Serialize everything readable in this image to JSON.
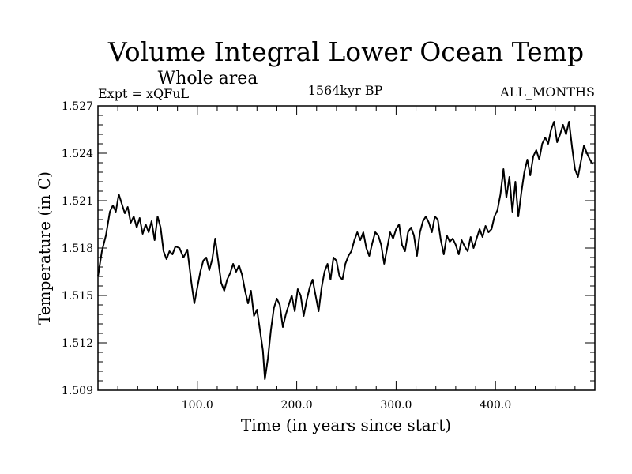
{
  "chart_data": {
    "type": "line",
    "title": "Volume Integral Lower Ocean Temp",
    "subtitle": "Whole area",
    "left_label": "Expt = xQFuL",
    "center_label": "1564kyr BP",
    "right_label": "ALL_MONTHS",
    "xlabel": "Time (in years since start)",
    "ylabel": "Temperature (in C)",
    "xlim": [
      0,
      500
    ],
    "ylim": [
      1.509,
      1.527
    ],
    "x_ticks": [
      100,
      200,
      300,
      400
    ],
    "x_tick_labels": [
      "100.0",
      "200.0",
      "300.0",
      "400.0"
    ],
    "y_ticks": [
      1.509,
      1.512,
      1.515,
      1.518,
      1.521,
      1.524,
      1.527
    ],
    "y_tick_labels": [
      "1.509",
      "1.512",
      "1.515",
      "1.518",
      "1.521",
      "1.524",
      "1.527"
    ],
    "line_color": "#000000",
    "series": [
      {
        "name": "Volume Integral Lower Ocean Temp",
        "x": [
          0,
          4,
          8,
          12,
          15,
          18,
          21,
          24,
          27,
          30,
          33,
          36,
          39,
          42,
          45,
          48,
          51,
          54,
          57,
          60,
          63,
          66,
          69,
          72,
          75,
          78,
          82,
          86,
          90,
          94,
          97,
          100,
          103,
          106,
          109,
          112,
          115,
          118,
          121,
          124,
          127,
          130,
          133,
          136,
          139,
          142,
          145,
          148,
          151,
          154,
          157,
          160,
          163,
          166,
          168,
          171,
          174,
          177,
          180,
          183,
          186,
          189,
          192,
          195,
          198,
          201,
          204,
          207,
          210,
          213,
          216,
          219,
          222,
          225,
          228,
          231,
          234,
          237,
          240,
          243,
          246,
          249,
          252,
          255,
          258,
          261,
          264,
          267,
          270,
          273,
          276,
          279,
          282,
          285,
          288,
          291,
          294,
          297,
          300,
          303,
          306,
          309,
          312,
          315,
          318,
          321,
          324,
          327,
          330,
          333,
          336,
          339,
          342,
          345,
          348,
          351,
          354,
          357,
          360,
          363,
          366,
          369,
          372,
          375,
          378,
          381,
          384,
          387,
          390,
          393,
          396,
          399,
          402,
          405,
          408,
          411,
          414,
          417,
          420,
          423,
          426,
          429,
          432,
          435,
          438,
          441,
          444,
          447,
          450,
          453,
          456,
          459,
          462,
          465,
          468,
          471,
          474,
          477,
          480,
          483,
          486,
          489,
          492,
          495,
          498
        ],
        "y": [
          1.5162,
          1.5178,
          1.5188,
          1.5203,
          1.5207,
          1.5203,
          1.5214,
          1.5208,
          1.5202,
          1.5206,
          1.5196,
          1.52,
          1.5193,
          1.5199,
          1.5189,
          1.5195,
          1.519,
          1.5197,
          1.5185,
          1.52,
          1.5193,
          1.5178,
          1.5173,
          1.5178,
          1.5176,
          1.5181,
          1.518,
          1.5174,
          1.5179,
          1.5158,
          1.5145,
          1.5155,
          1.5165,
          1.5172,
          1.5174,
          1.5166,
          1.5173,
          1.5186,
          1.5172,
          1.5158,
          1.5153,
          1.516,
          1.5164,
          1.517,
          1.5165,
          1.5169,
          1.5163,
          1.5153,
          1.5145,
          1.5153,
          1.5137,
          1.5141,
          1.5128,
          1.5115,
          1.5097,
          1.511,
          1.5128,
          1.5142,
          1.5148,
          1.5144,
          1.513,
          1.5138,
          1.5144,
          1.515,
          1.514,
          1.5154,
          1.515,
          1.5137,
          1.5147,
          1.5155,
          1.516,
          1.515,
          1.514,
          1.5155,
          1.5165,
          1.517,
          1.516,
          1.5174,
          1.5172,
          1.5162,
          1.516,
          1.517,
          1.5175,
          1.5178,
          1.5185,
          1.519,
          1.5185,
          1.519,
          1.518,
          1.5175,
          1.5183,
          1.519,
          1.5188,
          1.5182,
          1.517,
          1.518,
          1.519,
          1.5186,
          1.5192,
          1.5195,
          1.5182,
          1.5178,
          1.519,
          1.5193,
          1.5188,
          1.5175,
          1.519,
          1.5197,
          1.52,
          1.5196,
          1.519,
          1.52,
          1.5198,
          1.5185,
          1.5176,
          1.5188,
          1.5184,
          1.5186,
          1.5182,
          1.5176,
          1.5185,
          1.5181,
          1.5178,
          1.5187,
          1.518,
          1.5186,
          1.5192,
          1.5187,
          1.5194,
          1.519,
          1.5192,
          1.52,
          1.5204,
          1.5214,
          1.523,
          1.5212,
          1.5225,
          1.5203,
          1.5222,
          1.52,
          1.5215,
          1.5228,
          1.5236,
          1.5226,
          1.5238,
          1.5242,
          1.5236,
          1.5246,
          1.525,
          1.5246,
          1.5255,
          1.526,
          1.5247,
          1.5252,
          1.5258,
          1.5252,
          1.526,
          1.5244,
          1.523,
          1.5225,
          1.5235,
          1.5245,
          1.524,
          1.5236,
          1.5233
        ]
      }
    ]
  }
}
